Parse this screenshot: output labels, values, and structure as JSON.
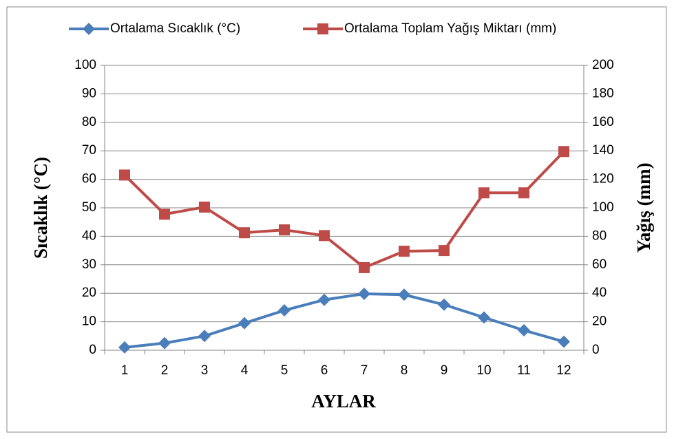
{
  "chart_data": {
    "type": "line",
    "categories": [
      "1",
      "2",
      "3",
      "4",
      "5",
      "6",
      "7",
      "8",
      "9",
      "10",
      "11",
      "12"
    ],
    "series": [
      {
        "name": "Ortalama Sıcaklık  (°C)",
        "color": "#4a7ebb",
        "marker": "diamond",
        "values": [
          1,
          2.5,
          5,
          9.5,
          14,
          17.7,
          19.8,
          19.5,
          16,
          11.5,
          7,
          3
        ]
      },
      {
        "name": "Ortalama Toplam Yağış Miktarı  (mm)",
        "color": "#be4b48",
        "marker": "square",
        "axis": "y2",
        "values": [
          123,
          95.5,
          100.5,
          82.5,
          84.5,
          80.5,
          58,
          69.5,
          70,
          110.5,
          110.5,
          139.5
        ]
      }
    ],
    "x_label": "AYLAR",
    "y_label": "Sıcaklık (°C)",
    "y2_label": "Yağış (mm)",
    "ylim": [
      0,
      100
    ],
    "yticks": [
      0,
      10,
      20,
      30,
      40,
      50,
      60,
      70,
      80,
      90,
      100
    ],
    "y2lim": [
      0,
      200
    ],
    "y2ticks": [
      0,
      20,
      40,
      60,
      80,
      100,
      120,
      140,
      160,
      180,
      200
    ],
    "grid": true,
    "legend": "top"
  }
}
